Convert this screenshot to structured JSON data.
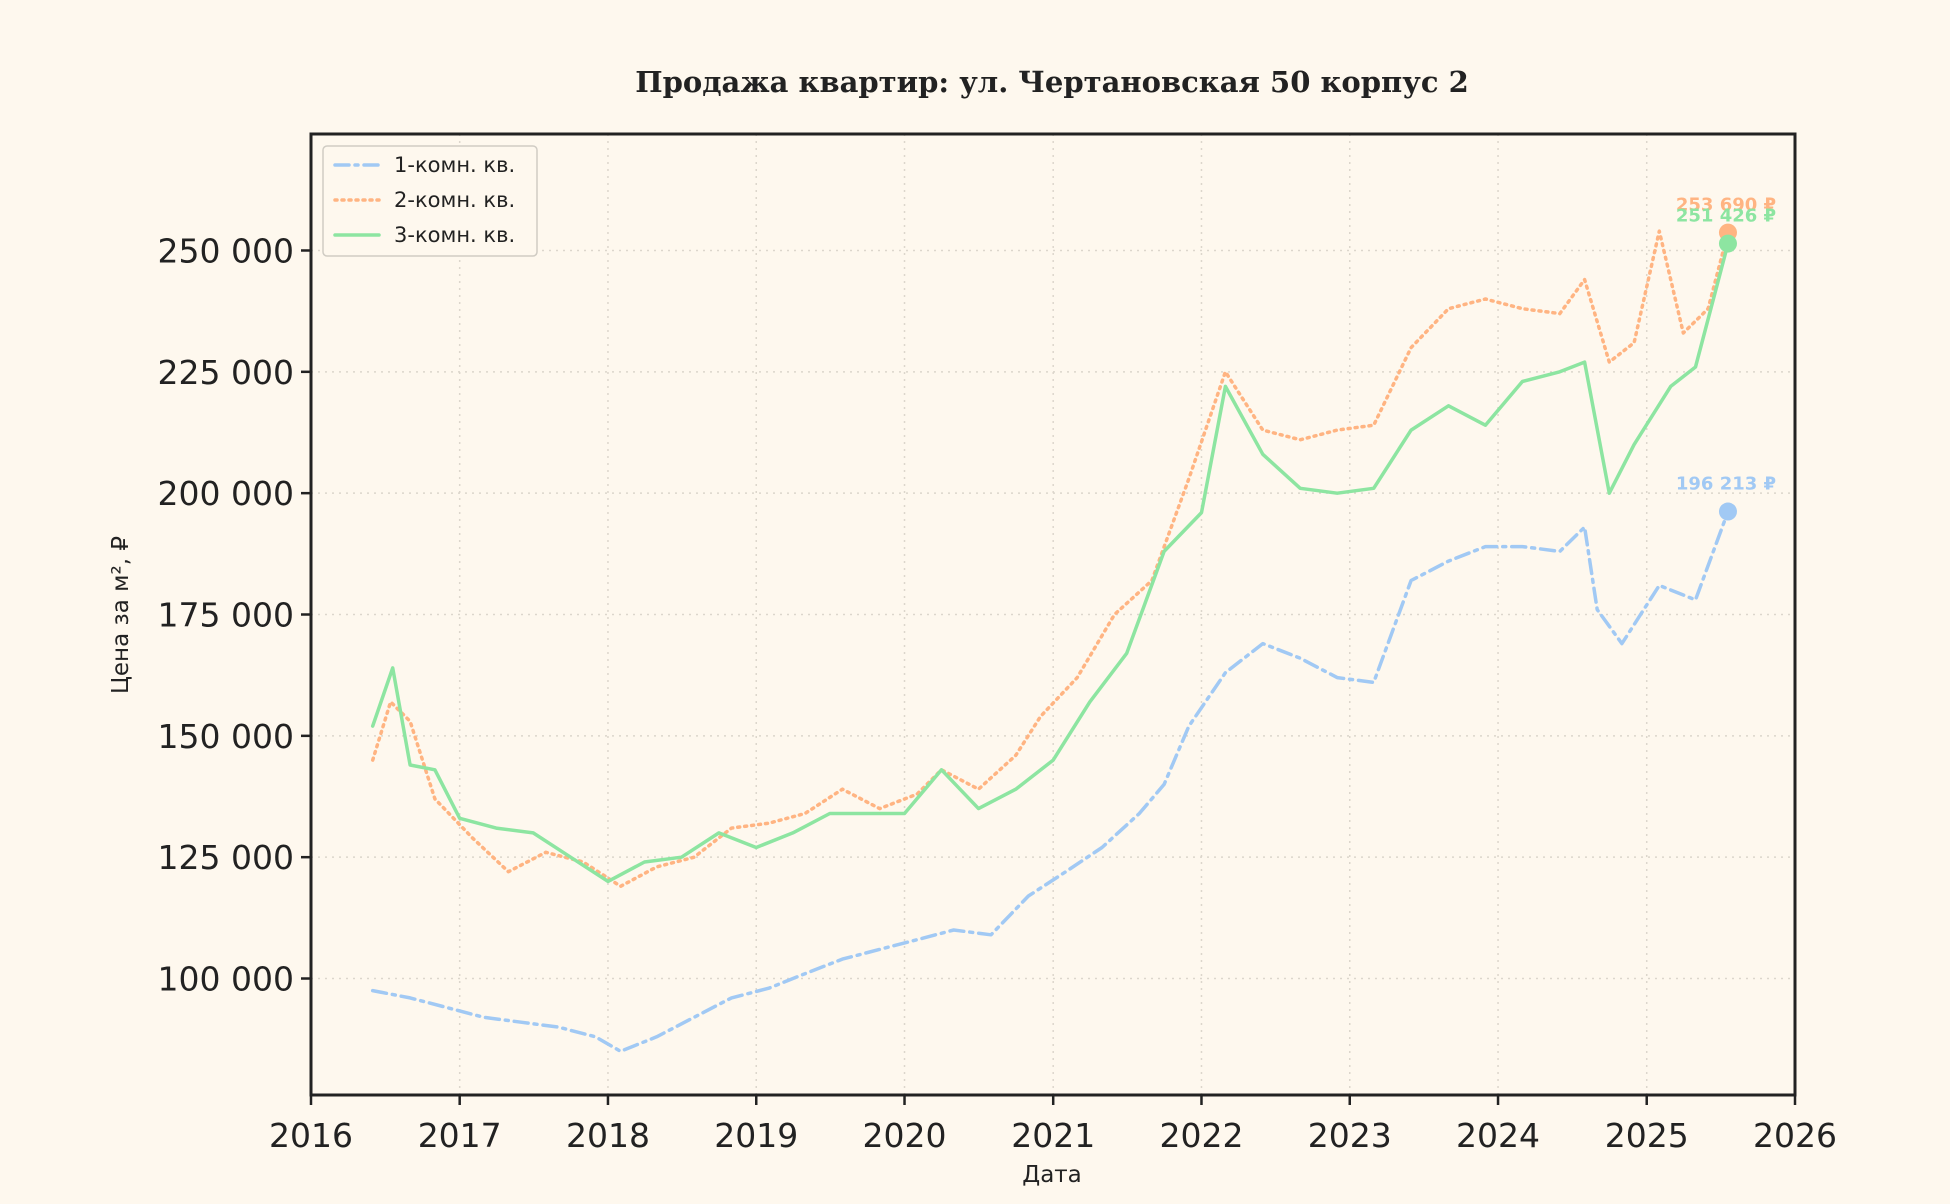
{
  "chart_data": {
    "type": "line",
    "title": "Продажа квартир: ул. Чертановская 50 корпус 2",
    "xlabel": "Дата",
    "ylabel": "Цена за м², ₽",
    "xlim": [
      "2016-01-01",
      "2026-01-01"
    ],
    "ylim": [
      76000,
      274000
    ],
    "x_ticks": [
      "2016",
      "2017",
      "2018",
      "2019",
      "2020",
      "2021",
      "2022",
      "2023",
      "2024",
      "2025",
      "2026"
    ],
    "y_ticks": [
      100000,
      125000,
      150000,
      175000,
      200000,
      225000,
      250000
    ],
    "y_tick_labels": [
      "100 000",
      "125 000",
      "150 000",
      "175 000",
      "200 000",
      "225 000",
      "250 000"
    ],
    "grid": true,
    "legend_position": "top-left",
    "series": [
      {
        "name": "1-комн. кв.",
        "color": "#a1c9f4",
        "style": "dashdot",
        "end_label": "196 213 ₽",
        "points": [
          [
            "2016-06-01",
            97500
          ],
          [
            "2016-09-01",
            96000
          ],
          [
            "2016-12-01",
            94000
          ],
          [
            "2017-03-01",
            92000
          ],
          [
            "2017-06-01",
            91000
          ],
          [
            "2017-09-01",
            90000
          ],
          [
            "2017-12-01",
            88000
          ],
          [
            "2018-02-01",
            85000
          ],
          [
            "2018-05-01",
            88000
          ],
          [
            "2018-08-01",
            92000
          ],
          [
            "2018-11-01",
            96000
          ],
          [
            "2019-02-01",
            98000
          ],
          [
            "2019-05-01",
            101000
          ],
          [
            "2019-08-01",
            104000
          ],
          [
            "2019-11-01",
            106000
          ],
          [
            "2020-02-01",
            108000
          ],
          [
            "2020-05-01",
            110000
          ],
          [
            "2020-08-01",
            109000
          ],
          [
            "2020-11-01",
            117000
          ],
          [
            "2021-02-01",
            122000
          ],
          [
            "2021-05-01",
            127000
          ],
          [
            "2021-08-01",
            134000
          ],
          [
            "2021-10-01",
            140000
          ],
          [
            "2021-12-01",
            152000
          ],
          [
            "2022-03-01",
            163000
          ],
          [
            "2022-06-01",
            169000
          ],
          [
            "2022-09-01",
            166000
          ],
          [
            "2022-12-01",
            162000
          ],
          [
            "2023-03-01",
            161000
          ],
          [
            "2023-06-01",
            182000
          ],
          [
            "2023-09-01",
            186000
          ],
          [
            "2023-12-01",
            189000
          ],
          [
            "2024-03-01",
            189000
          ],
          [
            "2024-06-01",
            188000
          ],
          [
            "2024-08-01",
            193000
          ],
          [
            "2024-09-01",
            176000
          ],
          [
            "2024-11-01",
            169000
          ],
          [
            "2025-02-01",
            181000
          ],
          [
            "2025-05-01",
            178000
          ],
          [
            "2025-07-20",
            196213
          ]
        ]
      },
      {
        "name": "2-комн. кв.",
        "color": "#ffb482",
        "style": "dotted",
        "end_label": "253 690 ₽",
        "points": [
          [
            "2016-06-01",
            145000
          ],
          [
            "2016-07-15",
            157000
          ],
          [
            "2016-09-01",
            153000
          ],
          [
            "2016-11-01",
            137000
          ],
          [
            "2017-02-01",
            129000
          ],
          [
            "2017-05-01",
            122000
          ],
          [
            "2017-08-01",
            126000
          ],
          [
            "2017-11-01",
            124000
          ],
          [
            "2018-02-01",
            119000
          ],
          [
            "2018-05-01",
            123000
          ],
          [
            "2018-08-01",
            125000
          ],
          [
            "2018-11-01",
            131000
          ],
          [
            "2019-02-01",
            132000
          ],
          [
            "2019-05-01",
            134000
          ],
          [
            "2019-08-01",
            139000
          ],
          [
            "2019-11-01",
            135000
          ],
          [
            "2020-02-01",
            138000
          ],
          [
            "2020-04-01",
            143000
          ],
          [
            "2020-07-01",
            139000
          ],
          [
            "2020-10-01",
            146000
          ],
          [
            "2020-12-01",
            154000
          ],
          [
            "2021-03-01",
            162000
          ],
          [
            "2021-06-01",
            175000
          ],
          [
            "2021-09-01",
            182000
          ],
          [
            "2021-12-01",
            203000
          ],
          [
            "2022-03-01",
            225000
          ],
          [
            "2022-06-01",
            213000
          ],
          [
            "2022-09-01",
            211000
          ],
          [
            "2022-12-01",
            213000
          ],
          [
            "2023-03-01",
            214000
          ],
          [
            "2023-06-01",
            230000
          ],
          [
            "2023-09-01",
            238000
          ],
          [
            "2023-12-01",
            240000
          ],
          [
            "2024-03-01",
            238000
          ],
          [
            "2024-06-01",
            237000
          ],
          [
            "2024-08-01",
            244000
          ],
          [
            "2024-10-01",
            227000
          ],
          [
            "2024-12-01",
            231000
          ],
          [
            "2025-02-01",
            254000
          ],
          [
            "2025-04-01",
            233000
          ],
          [
            "2025-06-01",
            238000
          ],
          [
            "2025-07-20",
            253690
          ]
        ]
      },
      {
        "name": "3-комн. кв.",
        "color": "#8de5a1",
        "style": "solid",
        "end_label": "251 426 ₽",
        "points": [
          [
            "2016-06-01",
            152000
          ],
          [
            "2016-07-20",
            164000
          ],
          [
            "2016-09-01",
            144000
          ],
          [
            "2016-11-01",
            143000
          ],
          [
            "2017-01-01",
            133000
          ],
          [
            "2017-04-01",
            131000
          ],
          [
            "2017-07-01",
            130000
          ],
          [
            "2017-10-01",
            125000
          ],
          [
            "2018-01-01",
            120000
          ],
          [
            "2018-04-01",
            124000
          ],
          [
            "2018-07-01",
            125000
          ],
          [
            "2018-10-01",
            130000
          ],
          [
            "2019-01-01",
            127000
          ],
          [
            "2019-04-01",
            130000
          ],
          [
            "2019-07-01",
            134000
          ],
          [
            "2019-10-01",
            134000
          ],
          [
            "2020-01-01",
            134000
          ],
          [
            "2020-04-01",
            143000
          ],
          [
            "2020-07-01",
            135000
          ],
          [
            "2020-10-01",
            139000
          ],
          [
            "2021-01-01",
            145000
          ],
          [
            "2021-04-01",
            157000
          ],
          [
            "2021-07-01",
            167000
          ],
          [
            "2021-10-01",
            188000
          ],
          [
            "2022-01-01",
            196000
          ],
          [
            "2022-03-01",
            222000
          ],
          [
            "2022-06-01",
            208000
          ],
          [
            "2022-09-01",
            201000
          ],
          [
            "2022-12-01",
            200000
          ],
          [
            "2023-03-01",
            201000
          ],
          [
            "2023-06-01",
            213000
          ],
          [
            "2023-09-01",
            218000
          ],
          [
            "2023-12-01",
            214000
          ],
          [
            "2024-03-01",
            223000
          ],
          [
            "2024-06-01",
            225000
          ],
          [
            "2024-08-01",
            227000
          ],
          [
            "2024-10-01",
            200000
          ],
          [
            "2024-12-01",
            210000
          ],
          [
            "2025-03-01",
            222000
          ],
          [
            "2025-05-01",
            226000
          ],
          [
            "2025-07-20",
            251426
          ]
        ]
      }
    ]
  }
}
